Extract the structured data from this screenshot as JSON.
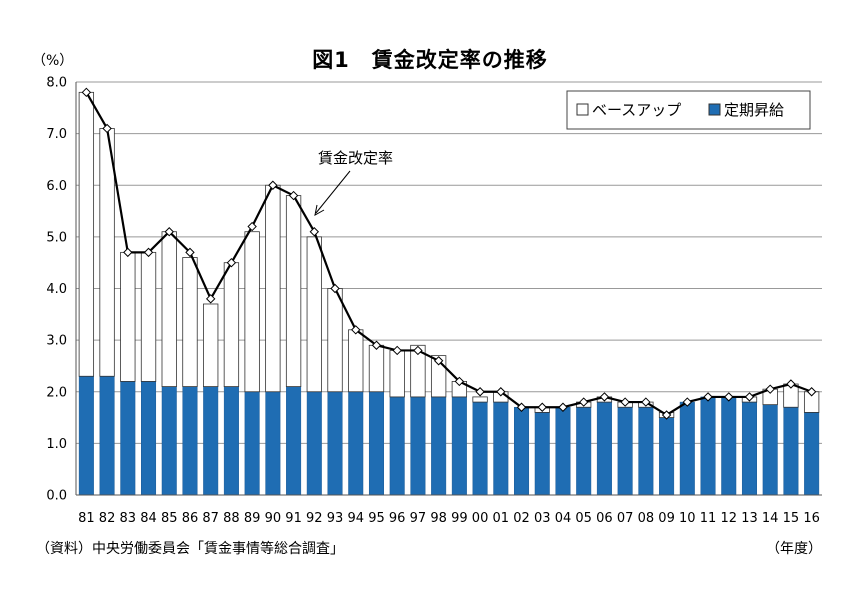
{
  "chart_data": {
    "type": "bar",
    "title": "図1　賃金改定率の推移",
    "ylabel": "（%）",
    "xlabel": "（年度）",
    "source": "（資料）中央労働委員会「賃金事情等総合調査」",
    "annotation": "賃金改定率",
    "ylim": [
      0,
      8
    ],
    "yticks": [
      "0.0",
      "1.0",
      "2.0",
      "3.0",
      "4.0",
      "5.0",
      "6.0",
      "7.0",
      "8.0"
    ],
    "categories": [
      "81",
      "82",
      "83",
      "84",
      "85",
      "86",
      "87",
      "88",
      "89",
      "90",
      "91",
      "92",
      "93",
      "94",
      "95",
      "96",
      "97",
      "98",
      "99",
      "00",
      "01",
      "02",
      "03",
      "04",
      "05",
      "06",
      "07",
      "08",
      "09",
      "10",
      "11",
      "12",
      "13",
      "14",
      "15",
      "16"
    ],
    "stacked": true,
    "legend_position": "top-right",
    "grid": true,
    "series": [
      {
        "name": "定期昇給",
        "kind": "bar",
        "color": "#1f6db3",
        "values": [
          2.3,
          2.3,
          2.2,
          2.2,
          2.1,
          2.1,
          2.1,
          2.1,
          2.0,
          2.0,
          2.1,
          2.0,
          2.0,
          2.0,
          2.0,
          1.9,
          1.9,
          1.9,
          1.9,
          1.8,
          1.8,
          1.7,
          1.6,
          1.7,
          1.7,
          1.8,
          1.7,
          1.7,
          1.5,
          1.8,
          1.9,
          1.9,
          1.8,
          1.75,
          1.7,
          1.6
        ]
      },
      {
        "name": "ベースアップ",
        "kind": "bar",
        "color": "#ffffff",
        "values": [
          5.5,
          4.8,
          2.5,
          2.5,
          3.0,
          2.5,
          1.6,
          2.4,
          3.1,
          4.0,
          3.7,
          3.0,
          2.0,
          1.2,
          0.9,
          0.9,
          1.0,
          0.8,
          0.3,
          0.1,
          0.2,
          0.0,
          0.1,
          0.0,
          0.1,
          0.1,
          0.1,
          0.1,
          0.1,
          0.0,
          0.0,
          0.0,
          0.1,
          0.3,
          0.45,
          0.4
        ]
      },
      {
        "name": "賃金改定率",
        "kind": "line",
        "color": "#000000",
        "values": [
          7.8,
          7.1,
          4.7,
          4.7,
          5.1,
          4.7,
          3.8,
          4.5,
          5.2,
          6.0,
          5.8,
          5.1,
          4.0,
          3.2,
          2.9,
          2.8,
          2.8,
          2.6,
          2.2,
          2.0,
          2.0,
          1.7,
          1.7,
          1.7,
          1.8,
          1.9,
          1.8,
          1.8,
          1.55,
          1.8,
          1.9,
          1.9,
          1.9,
          2.05,
          2.15,
          2.0
        ]
      }
    ]
  }
}
